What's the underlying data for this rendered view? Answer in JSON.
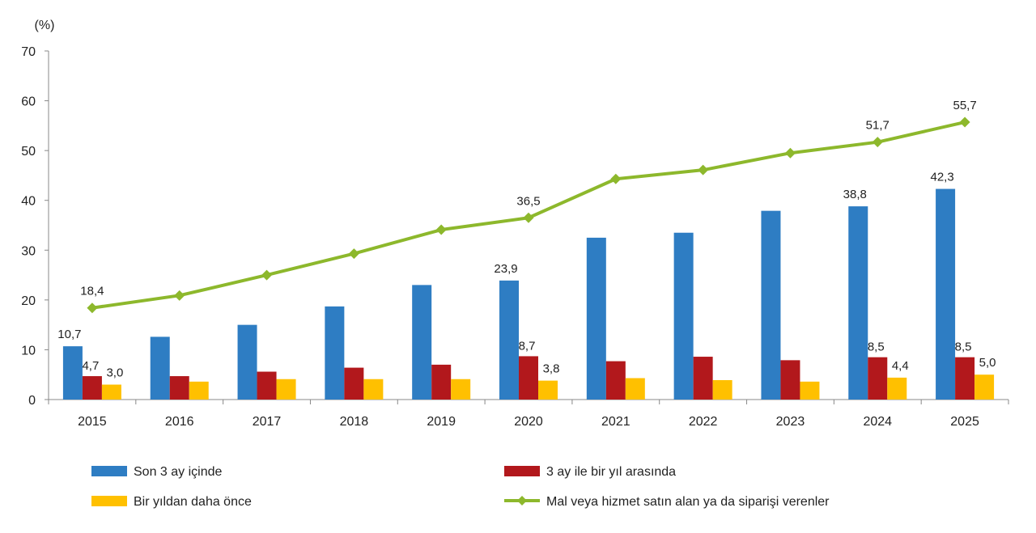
{
  "chart_data": {
    "type": "bar",
    "unit_label": "(%)",
    "categories": [
      "2015",
      "2016",
      "2017",
      "2018",
      "2019",
      "2020",
      "2021",
      "2022",
      "2023",
      "2024",
      "2025"
    ],
    "ylim": [
      0,
      70
    ],
    "yticks": [
      0,
      10,
      20,
      30,
      40,
      50,
      60,
      70
    ],
    "grid": false,
    "legend_position": "bottom",
    "series": [
      {
        "name": "Son 3 ay içinde",
        "kind": "bar",
        "color": "#2E7DC3",
        "values": [
          10.7,
          12.6,
          15.0,
          18.7,
          23.0,
          23.9,
          32.5,
          33.5,
          37.9,
          38.8,
          42.3
        ]
      },
      {
        "name": "3 ay ile bir yıl arasında",
        "kind": "bar",
        "color": "#B2181C",
        "values": [
          4.7,
          4.7,
          5.6,
          6.4,
          7.0,
          8.7,
          7.7,
          8.6,
          7.9,
          8.5,
          8.5
        ]
      },
      {
        "name": "Bir yıldan daha önce",
        "kind": "bar",
        "color": "#FFC000",
        "values": [
          3.0,
          3.6,
          4.1,
          4.1,
          4.1,
          3.8,
          4.3,
          3.9,
          3.6,
          4.4,
          5.0
        ]
      },
      {
        "name": "Mal veya hizmet satın alan ya da siparişi verenler",
        "kind": "line",
        "color": "#8DB82C",
        "values": [
          18.4,
          20.9,
          25.0,
          29.3,
          34.1,
          36.5,
          44.3,
          46.1,
          49.5,
          51.7,
          55.7
        ]
      }
    ],
    "data_labels": [
      {
        "series": 0,
        "index": 0,
        "text": "10,7"
      },
      {
        "series": 1,
        "index": 0,
        "text": "4,7"
      },
      {
        "series": 2,
        "index": 0,
        "text": "3,0"
      },
      {
        "series": 3,
        "index": 0,
        "text": "18,4"
      },
      {
        "series": 0,
        "index": 5,
        "text": "23,9"
      },
      {
        "series": 1,
        "index": 5,
        "text": "8,7"
      },
      {
        "series": 2,
        "index": 5,
        "text": "3,8"
      },
      {
        "series": 3,
        "index": 5,
        "text": "36,5"
      },
      {
        "series": 0,
        "index": 9,
        "text": "38,8"
      },
      {
        "series": 1,
        "index": 9,
        "text": "8,5"
      },
      {
        "series": 2,
        "index": 9,
        "text": "4,4"
      },
      {
        "series": 3,
        "index": 9,
        "text": "51,7"
      },
      {
        "series": 0,
        "index": 10,
        "text": "42,3"
      },
      {
        "series": 1,
        "index": 10,
        "text": "8,5"
      },
      {
        "series": 2,
        "index": 10,
        "text": "5,0"
      },
      {
        "series": 3,
        "index": 10,
        "text": "55,7"
      }
    ]
  }
}
